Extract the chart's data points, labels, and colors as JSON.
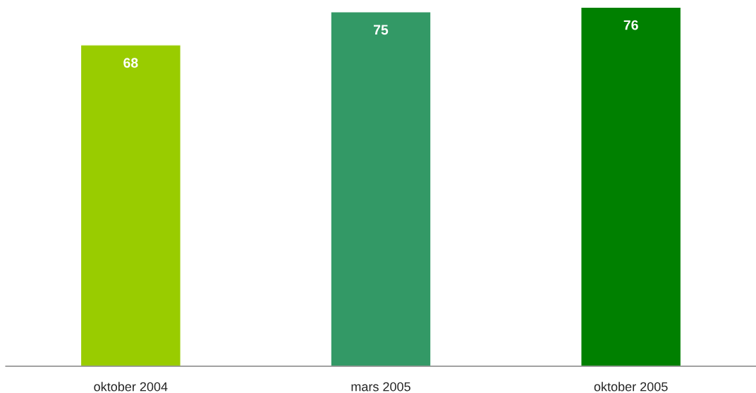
{
  "chart_data": {
    "type": "bar",
    "categories": [
      "oktober 2004",
      "mars 2005",
      "oktober 2005"
    ],
    "values": [
      68,
      75,
      76
    ],
    "colors": [
      "#99cc00",
      "#339966",
      "#008000"
    ],
    "data_labels": true,
    "grid": false,
    "legend": false,
    "tick_labels": "x"
  }
}
